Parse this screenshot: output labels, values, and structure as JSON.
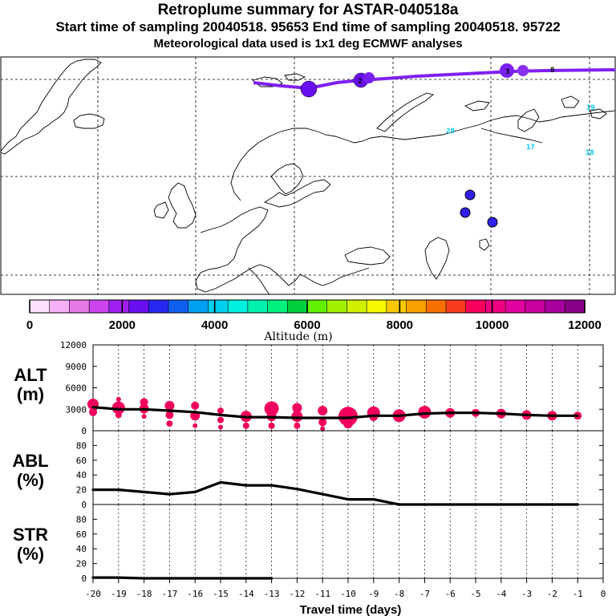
{
  "title": "Retroplume summary for ASTAR-040518a",
  "subtitle": "Start time of sampling 20040518. 95653     End time of sampling 20040518. 95722",
  "subtitle2": "Meteorological data used is 1x1 deg ECMWF analyses",
  "colorbar": {
    "colors": [
      "#fde0fd",
      "#f6b0f6",
      "#e87ae8",
      "#cc44ee",
      "#a020f0",
      "#6a10f0",
      "#2828f0",
      "#1060f0",
      "#00a0f0",
      "#00d0f0",
      "#00f0e0",
      "#00f0b0",
      "#00f080",
      "#00d040",
      "#60f000",
      "#a0f000",
      "#d0f000",
      "#f8f800",
      "#f8c800",
      "#f8a000",
      "#f87000",
      "#f83c1c",
      "#f8005c",
      "#f00080",
      "#e000a0",
      "#c800a0",
      "#a800a0",
      "#880088"
    ],
    "tick_labels": [
      "0",
      "2000",
      "4000",
      "6000",
      "8000",
      "10000",
      "12000"
    ],
    "title": "Altitude (m)"
  },
  "map_labels": [
    {
      "text": "20",
      "color": "#00c8f0"
    },
    {
      "text": "19",
      "color": "#00c8f0"
    },
    {
      "text": "17",
      "color": "#00c8f0"
    },
    {
      "text": "18",
      "color": "#00c8f0"
    },
    {
      "text": "2",
      "color": "#000000"
    },
    {
      "text": "3",
      "color": "#000000"
    },
    {
      "text": "8",
      "color": "#000000"
    }
  ],
  "chart_data": [
    {
      "type": "line",
      "panel": "ALT",
      "ylabel": "ALT\n(m)",
      "ylabel_lines": [
        "ALT",
        "(m)"
      ],
      "xlabel": "Travel time (days)",
      "xlim": [
        -20,
        0
      ],
      "ylim": [
        0,
        12000
      ],
      "yticks": [
        "0",
        "3000",
        "6000",
        "9000",
        "12000"
      ],
      "x": [
        -20,
        -19,
        -18,
        -17,
        -16,
        -15,
        -14,
        -13,
        -12,
        -11,
        -10,
        -9,
        -8,
        -7,
        -6,
        -5,
        -4,
        -3,
        -2,
        -1
      ],
      "values": [
        3300,
        3000,
        3000,
        2800,
        2600,
        2200,
        1900,
        1900,
        1800,
        1800,
        1800,
        2100,
        2100,
        2400,
        2500,
        2500,
        2400,
        2200,
        2100,
        2100
      ],
      "marker_color": "#f0005c",
      "markers": [
        {
          "x": -20,
          "y": 3700,
          "s": 7
        },
        {
          "x": -20,
          "y": 2600,
          "s": 5
        },
        {
          "x": -19,
          "y": 4400,
          "s": 3
        },
        {
          "x": -19,
          "y": 3200,
          "s": 8
        },
        {
          "x": -19,
          "y": 2200,
          "s": 4
        },
        {
          "x": -18,
          "y": 4000,
          "s": 5
        },
        {
          "x": -18,
          "y": 3100,
          "s": 6
        },
        {
          "x": -18,
          "y": 2000,
          "s": 3
        },
        {
          "x": -17,
          "y": 3500,
          "s": 6
        },
        {
          "x": -17,
          "y": 2200,
          "s": 5
        },
        {
          "x": -17,
          "y": 1000,
          "s": 4
        },
        {
          "x": -16,
          "y": 3500,
          "s": 5
        },
        {
          "x": -16,
          "y": 2100,
          "s": 6
        },
        {
          "x": -16,
          "y": 700,
          "s": 3
        },
        {
          "x": -15,
          "y": 2800,
          "s": 4
        },
        {
          "x": -15,
          "y": 1500,
          "s": 4
        },
        {
          "x": -15,
          "y": 500,
          "s": 3
        },
        {
          "x": -14,
          "y": 2000,
          "s": 7
        },
        {
          "x": -14,
          "y": 700,
          "s": 4
        },
        {
          "x": -13,
          "y": 3100,
          "s": 9
        },
        {
          "x": -13,
          "y": 2000,
          "s": 6
        },
        {
          "x": -13,
          "y": 700,
          "s": 4
        },
        {
          "x": -12,
          "y": 3200,
          "s": 6
        },
        {
          "x": -12,
          "y": 2000,
          "s": 7
        },
        {
          "x": -12,
          "y": 700,
          "s": 4
        },
        {
          "x": -11,
          "y": 2800,
          "s": 6
        },
        {
          "x": -11,
          "y": 1200,
          "s": 5
        },
        {
          "x": -11,
          "y": 300,
          "s": 3
        },
        {
          "x": -10,
          "y": 2000,
          "s": 12
        },
        {
          "x": -10,
          "y": 1000,
          "s": 6
        },
        {
          "x": -9,
          "y": 2500,
          "s": 8
        },
        {
          "x": -9,
          "y": 1900,
          "s": 5
        },
        {
          "x": -8,
          "y": 2100,
          "s": 8
        },
        {
          "x": -7,
          "y": 2600,
          "s": 8
        },
        {
          "x": -6,
          "y": 2500,
          "s": 6
        },
        {
          "x": -5,
          "y": 2500,
          "s": 5
        },
        {
          "x": -4,
          "y": 2400,
          "s": 6
        },
        {
          "x": -3,
          "y": 2200,
          "s": 6
        },
        {
          "x": -2,
          "y": 2100,
          "s": 6
        },
        {
          "x": -1,
          "y": 2100,
          "s": 5
        }
      ]
    },
    {
      "type": "line",
      "panel": "ABL",
      "ylabel_lines": [
        "ABL",
        "(%)"
      ],
      "xlim": [
        -20,
        0
      ],
      "ylim": [
        0,
        100
      ],
      "yticks": [
        "0",
        "20",
        "40",
        "60",
        "80"
      ],
      "x": [
        -20,
        -19,
        -18,
        -17,
        -16,
        -15,
        -14,
        -13,
        -12,
        -11,
        -10,
        -9,
        -8,
        -7,
        -6,
        -5,
        -4,
        -3,
        -2,
        -1
      ],
      "values": [
        20,
        20,
        17,
        14,
        17,
        30,
        26,
        26,
        21,
        14,
        7,
        7,
        0,
        0,
        0,
        0,
        0,
        0,
        0,
        0
      ]
    },
    {
      "type": "line",
      "panel": "STR",
      "ylabel_lines": [
        "STR",
        "(%)"
      ],
      "xlim": [
        -20,
        0
      ],
      "ylim": [
        0,
        100
      ],
      "yticks": [
        "0",
        "20",
        "40",
        "60",
        "80"
      ],
      "x": [
        -20,
        -19,
        -18,
        -17,
        -16,
        -15,
        -14,
        -13
      ],
      "values": [
        1,
        1,
        0,
        0,
        0,
        0,
        0,
        0
      ]
    }
  ],
  "xticks": [
    "-20",
    "-19",
    "-18",
    "-17",
    "-16",
    "-15",
    "-14",
    "-13",
    "-12",
    "-11",
    "-10",
    "-9",
    "-8",
    "-7",
    "-6",
    "-5",
    "-4",
    "-3",
    "-2",
    "-1",
    "0"
  ]
}
